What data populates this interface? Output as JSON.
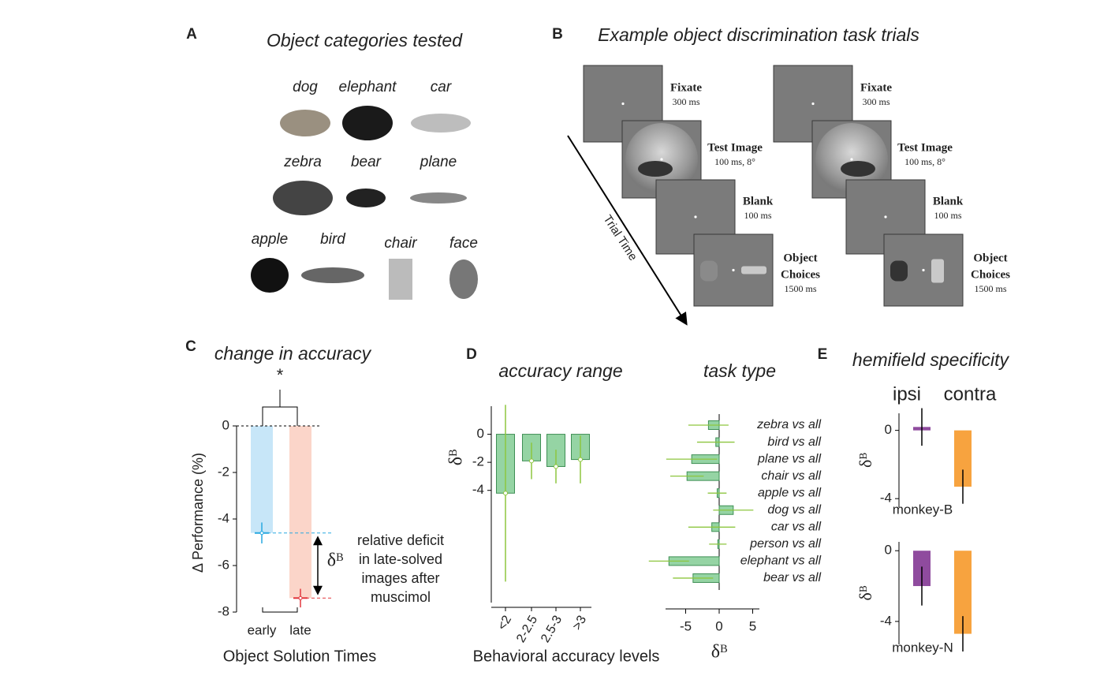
{
  "panel_a": {
    "letter": "A",
    "title": "Object categories tested",
    "objects": [
      "dog",
      "elephant",
      "car",
      "zebra",
      "bear",
      "plane",
      "apple",
      "bird",
      "chair",
      "face"
    ]
  },
  "panel_b": {
    "letter": "B",
    "title": "Example object discrimination task trials",
    "axis_label": "Trial Time",
    "steps": [
      {
        "label": [
          "Fixate"
        ],
        "duration": "300 ms"
      },
      {
        "label": [
          "Test Image"
        ],
        "duration": "100 ms, 8°"
      },
      {
        "label": [
          "Blank"
        ],
        "duration": "100 ms"
      },
      {
        "label": [
          "Object",
          "Choices"
        ],
        "duration": "1500 ms"
      }
    ]
  },
  "chart_data": [
    {
      "type": "bar",
      "letter": "C",
      "title": "change in accuracy",
      "categories": [
        "early",
        "late"
      ],
      "values": [
        -4.6,
        -7.4
      ],
      "errors": [
        0.45,
        0.4
      ],
      "colors": [
        "#c7e6f8",
        "#fbd5c9"
      ],
      "marker_colors": [
        "#29a9e1",
        "#e2383f"
      ],
      "ylim": [
        -8,
        0
      ],
      "yticks": [
        0,
        -2,
        -4,
        -6,
        -8
      ],
      "ylabel": "Δ Performance (%)",
      "xlabel": "Object Solution Times",
      "significance": "*",
      "annotation": [
        "relative deficit",
        "in late-solved",
        "images after",
        "muscimol"
      ],
      "annotation_symbol": "δᴮ"
    },
    {
      "type": "bar",
      "letter": "D",
      "title": "accuracy range",
      "categories": [
        "<2",
        "2-2.5",
        "2.5-3",
        ">3"
      ],
      "values": [
        -4.2,
        -1.9,
        -2.3,
        -1.8
      ],
      "errors": [
        6.3,
        1.3,
        1.2,
        1.7
      ],
      "color": "#95d4a4",
      "edge_color": "#3f8f55",
      "error_color": "#8dc63f",
      "ylim": [
        -12,
        2
      ],
      "yticks": [
        0,
        -2,
        -4
      ],
      "ylabel": "δᴮ",
      "xlabel": "Behavioral accuracy levels"
    },
    {
      "type": "hbar",
      "title": "task type",
      "categories": [
        "zebra vs all",
        "bird vs all",
        "plane vs all",
        "chair vs all",
        "apple vs all",
        "dog vs all",
        "car vs all",
        "person vs all",
        "elephant vs all",
        "bear vs all"
      ],
      "values": [
        -1.6,
        -0.5,
        -4.1,
        -4.8,
        -0.3,
        2.1,
        -1.1,
        -0.2,
        -7.5,
        -3.9
      ],
      "errors": [
        3,
        2.8,
        3.8,
        2.5,
        1.4,
        3,
        3.5,
        1.3,
        3,
        3
      ],
      "color": "#95d4a4",
      "edge_color": "#3f8f55",
      "error_color": "#8dc63f",
      "xlim": [
        -8,
        6
      ],
      "xticks": [
        -5,
        0,
        5
      ],
      "xlabel": "δᴮ"
    },
    {
      "type": "bar",
      "letter": "E",
      "title": "hemifield specificity",
      "categories": [
        "ipsi",
        "contra"
      ],
      "colors": [
        "#8f4b9e",
        "#f7a33f"
      ],
      "ylabel": "δᴮ",
      "subplots": [
        {
          "label": "monkey-B",
          "values": [
            0.2,
            -3.3
          ],
          "errors": [
            1.1,
            1.0
          ],
          "ylim": [
            -4.5,
            1
          ],
          "yticks": [
            0,
            -4
          ]
        },
        {
          "label": "monkey-N",
          "values": [
            -2.0,
            -4.7
          ],
          "errors": [
            1.1,
            1.0
          ],
          "ylim": [
            -5.3,
            0.5
          ],
          "yticks": [
            0,
            -4
          ]
        }
      ]
    }
  ]
}
